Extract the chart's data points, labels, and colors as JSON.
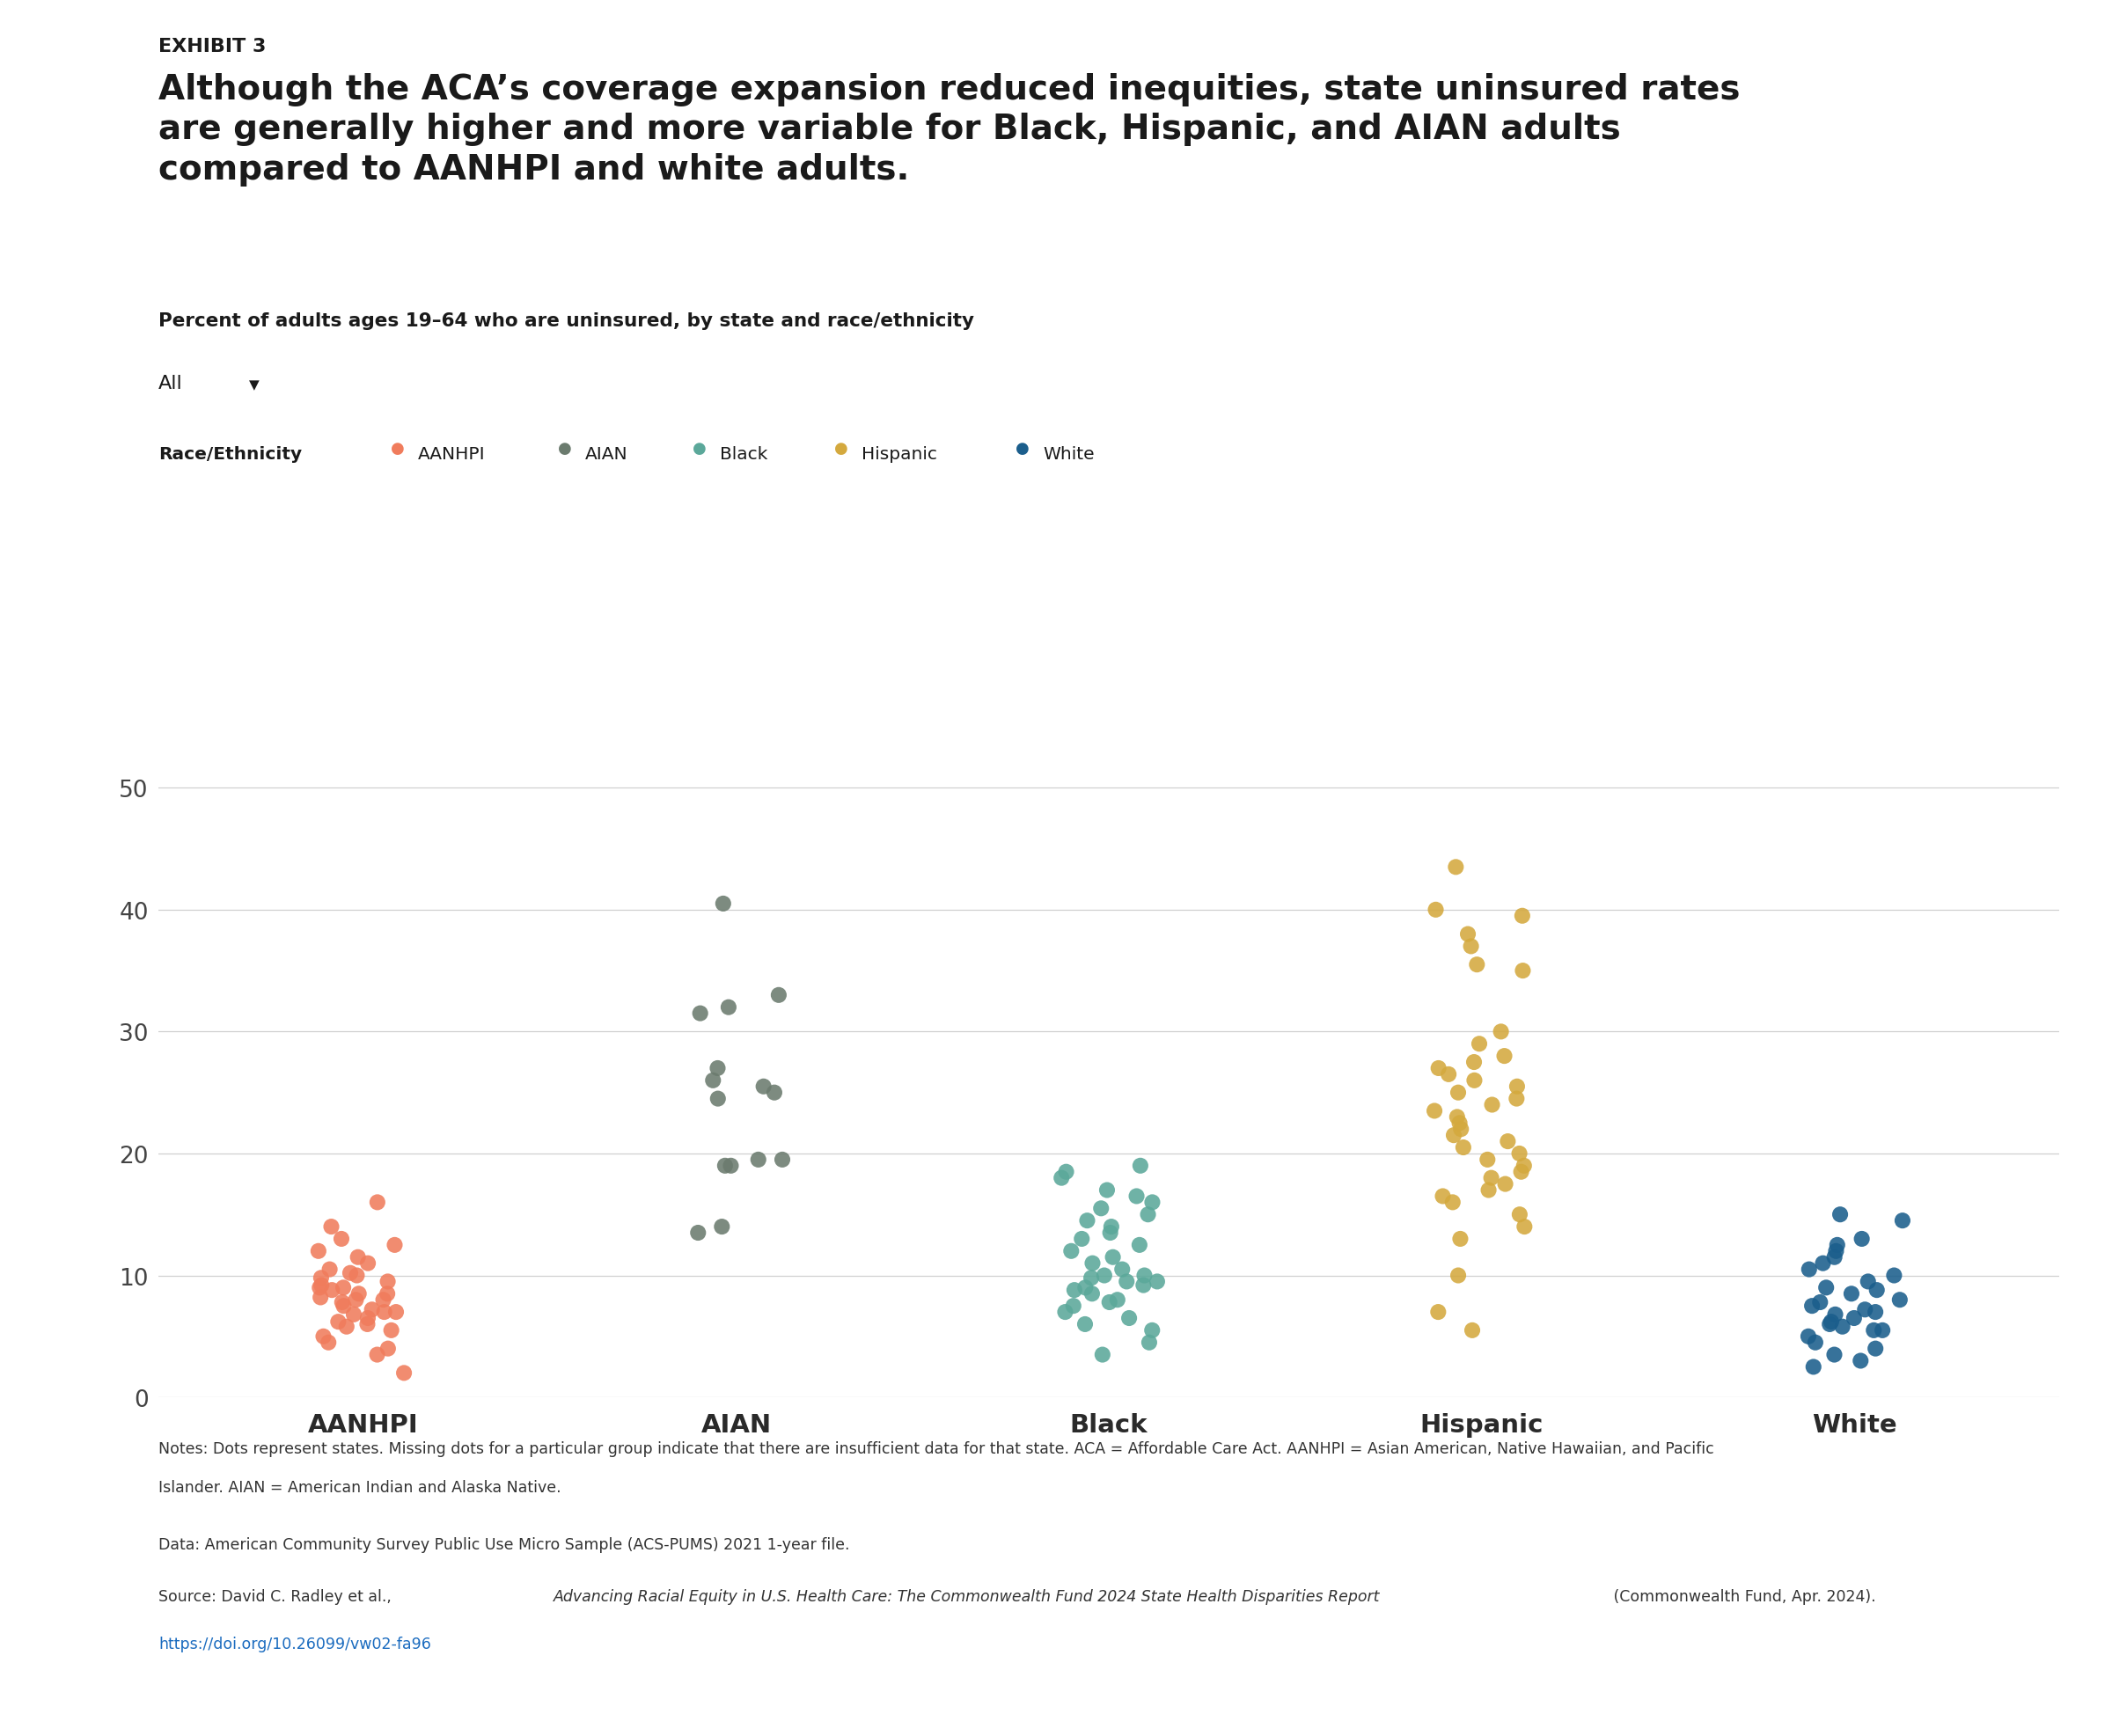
{
  "title_exhibit": "EXHIBIT 3",
  "title_main": "Although the ACA’s coverage expansion reduced inequities, state uninsured rates\nare generally higher and more variable for Black, Hispanic, and AIAN adults\ncompared to AANHPI and white adults.",
  "subtitle": "Percent of adults ages 19–64 who are uninsured, by state and race/ethnicity",
  "legend_label": "Race/Ethnicity",
  "legend_items": [
    "AANHPI",
    "AIAN",
    "Black",
    "Hispanic",
    "White"
  ],
  "legend_colors": [
    "#F07C5C",
    "#6B7B6E",
    "#5BA89A",
    "#D4A93E",
    "#1B5E8C"
  ],
  "categories": [
    "AANHPI",
    "AIAN",
    "Black",
    "Hispanic",
    "White"
  ],
  "ylim": [
    0,
    52
  ],
  "yticks": [
    0,
    10,
    20,
    30,
    40,
    50
  ],
  "background_color": "#ffffff",
  "notes_line1": "Notes: Dots represent states. Missing dots for a particular group indicate that there are insufficient data for that state. ACA = Affordable Care Act. AANHPI = Asian American, Native Hawaiian, and Pacific",
  "notes_line2": "Islander. AIAN = American Indian and Alaska Native.",
  "data_source": "Data: American Community Survey Public Use Micro Sample (ACS-PUMS) 2021 1-year file.",
  "source_prefix": "Source: David C. Radley et al., ",
  "source_italic": "Advancing Racial Equity in U.S. Health Care: The Commonwealth Fund 2024 State Health Disparities Report",
  "source_suffix": " (Commonwealth Fund, Apr. 2024).",
  "source_url": "https://doi.org/10.26099/vw02-fa96",
  "AANHPI_values": [
    2.0,
    3.5,
    4.0,
    4.5,
    5.0,
    5.5,
    5.8,
    6.0,
    6.2,
    6.5,
    6.8,
    7.0,
    7.0,
    7.2,
    7.5,
    7.8,
    8.0,
    8.0,
    8.2,
    8.5,
    8.5,
    8.8,
    9.0,
    9.0,
    9.2,
    9.5,
    9.8,
    10.0,
    10.2,
    10.5,
    11.0,
    11.5,
    12.0,
    12.5,
    13.0,
    14.0,
    16.0
  ],
  "AIAN_values": [
    13.5,
    14.0,
    19.0,
    19.0,
    19.5,
    19.5,
    24.5,
    25.0,
    25.5,
    26.0,
    27.0,
    31.5,
    32.0,
    33.0,
    40.5
  ],
  "Black_values": [
    3.5,
    4.5,
    5.5,
    6.0,
    6.5,
    7.0,
    7.5,
    7.8,
    8.0,
    8.5,
    8.8,
    9.0,
    9.2,
    9.5,
    9.5,
    9.8,
    10.0,
    10.0,
    10.5,
    11.0,
    11.5,
    12.0,
    12.5,
    13.0,
    13.5,
    14.0,
    14.5,
    15.0,
    15.5,
    16.0,
    16.5,
    17.0,
    18.0,
    18.5,
    19.0
  ],
  "Hispanic_values": [
    5.5,
    7.0,
    10.0,
    13.0,
    14.0,
    15.0,
    16.0,
    16.5,
    17.0,
    17.5,
    18.0,
    18.5,
    19.0,
    19.5,
    20.0,
    20.5,
    21.0,
    21.5,
    22.0,
    22.5,
    23.0,
    23.5,
    24.0,
    24.5,
    25.0,
    25.5,
    26.0,
    26.5,
    27.0,
    27.5,
    28.0,
    29.0,
    30.0,
    35.0,
    35.5,
    37.0,
    38.0,
    39.5,
    40.0,
    43.5
  ],
  "White_values": [
    2.5,
    3.0,
    3.5,
    4.0,
    4.5,
    5.0,
    5.5,
    5.5,
    5.8,
    6.0,
    6.2,
    6.5,
    6.8,
    7.0,
    7.2,
    7.5,
    7.8,
    8.0,
    8.5,
    8.8,
    9.0,
    9.5,
    10.0,
    10.5,
    11.0,
    11.5,
    12.0,
    12.5,
    13.0,
    14.5,
    15.0
  ]
}
